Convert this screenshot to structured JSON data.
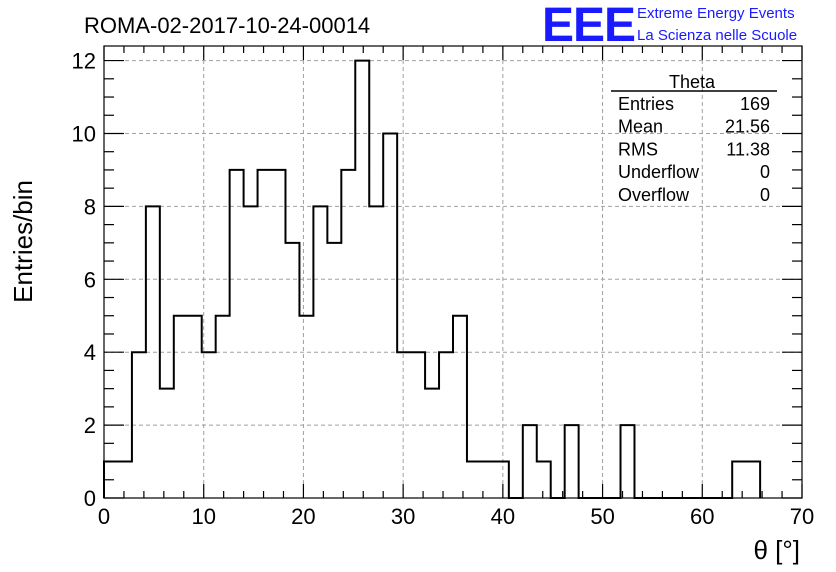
{
  "title": "ROMA-02-2017-10-24-00014",
  "logo": {
    "mark": "EEE",
    "line1": "Extreme Energy Events",
    "line2": "La Scienza nelle Scuole",
    "color": "#1a1aff"
  },
  "stats": {
    "name": "Theta",
    "rows": [
      {
        "label": "Entries",
        "value": "169"
      },
      {
        "label": "Mean",
        "value": "21.56"
      },
      {
        "label": "RMS",
        "value": "11.38"
      },
      {
        "label": "Underflow",
        "value": "0"
      },
      {
        "label": "Overflow",
        "value": "0"
      }
    ]
  },
  "chart_data": {
    "type": "bar",
    "histogram": true,
    "xlabel": "θ [°]",
    "ylabel": "Entries/bin",
    "xlim": [
      0,
      70
    ],
    "ylim": [
      0,
      12.4
    ],
    "xticks": [
      0,
      10,
      20,
      30,
      40,
      50,
      60,
      70
    ],
    "yticks": [
      0,
      2,
      4,
      6,
      8,
      10,
      12
    ],
    "grid": true,
    "bin_width": 1.4,
    "bin_start": 0,
    "values": [
      1,
      1,
      4,
      8,
      3,
      5,
      5,
      4,
      5,
      9,
      8,
      9,
      9,
      7,
      5,
      8,
      7,
      9,
      12,
      8,
      10,
      4,
      4,
      3,
      4,
      5,
      1,
      1,
      1,
      0,
      2,
      1,
      0,
      2,
      0,
      0,
      0,
      2,
      0,
      0,
      0,
      0,
      0,
      0,
      0,
      1,
      1,
      0,
      0,
      0
    ]
  }
}
